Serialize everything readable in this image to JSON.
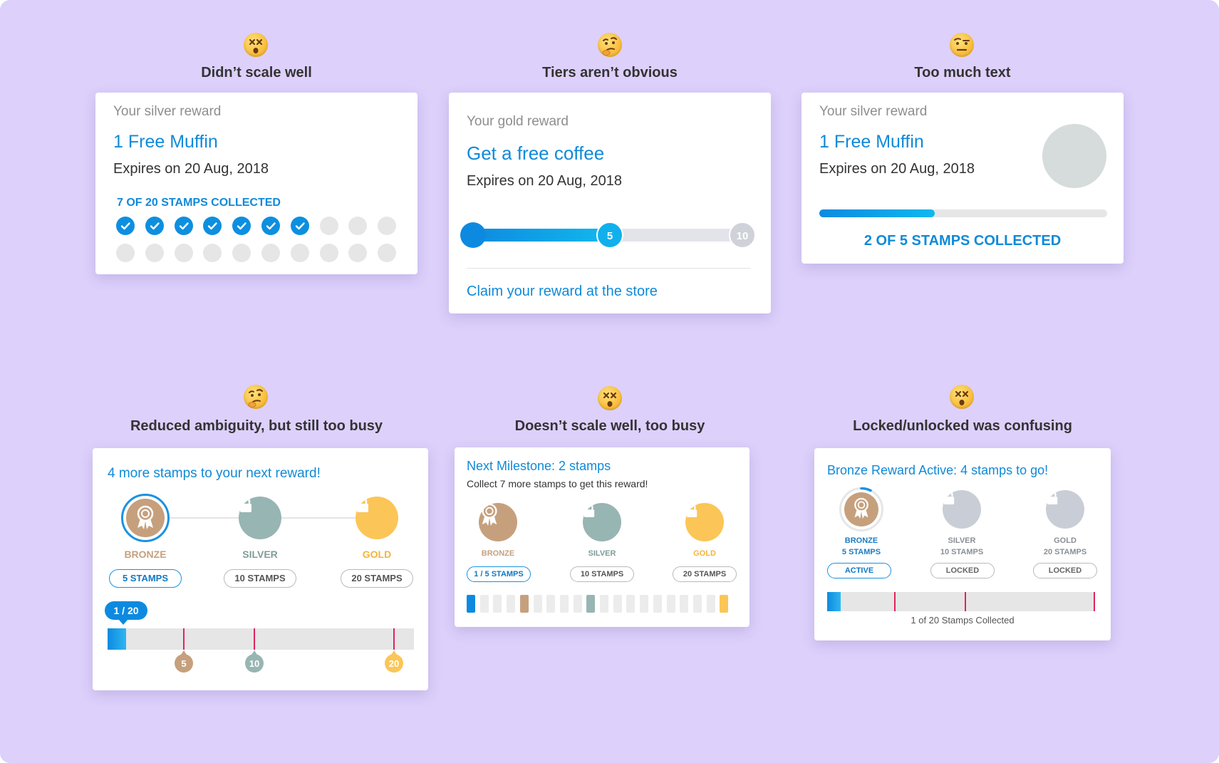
{
  "colors": {
    "background": "#ddd0fb",
    "accent": "#0f8ad8",
    "bronze": "#c6a07d",
    "silver": "#97b5b3",
    "gold": "#fbc657",
    "grey_lock": "#c9ced6",
    "marker": "#e0245e"
  },
  "panels": [
    {
      "emoji": "dizzy-face-icon",
      "caption": "Didn’t scale well",
      "card": {
        "eyebrow": "Your silver reward",
        "title": "1 Free Muffin",
        "expiry": "Expires on 20 Aug, 2018",
        "stamps_label": "7 OF 20 STAMPS COLLECTED",
        "stamps_collected": 7,
        "stamps_total": 20
      }
    },
    {
      "emoji": "thinking-face-icon",
      "caption": "Tiers aren’t obvious",
      "card": {
        "eyebrow": "Your gold reward",
        "title": "Get a free coffee",
        "expiry": "Expires on 20 Aug, 2018",
        "progress_value": 5,
        "progress_max": 10,
        "marker_mid": "5",
        "marker_end": "10",
        "footer": "Claim your reward at the store"
      }
    },
    {
      "emoji": "raised-eyebrow-face-icon",
      "caption": "Too much text",
      "card": {
        "eyebrow": "Your silver reward",
        "title": "1 Free Muffin",
        "expiry": "Expires on 20 Aug, 2018",
        "progress_fraction": 0.4,
        "stamps_label": "2 OF 5 STAMPS COLLECTED"
      }
    },
    {
      "emoji": "thinking-face-icon",
      "caption": "Reduced ambiguity, but still too busy",
      "card": {
        "headline": "4 more stamps to your next reward!",
        "tiers": [
          {
            "name": "BRONZE",
            "pill": "5 STAMPS"
          },
          {
            "name": "SILVER",
            "pill": "10 STAMPS"
          },
          {
            "name": "GOLD",
            "pill": "20 STAMPS"
          }
        ],
        "progress_badge": "1 / 20",
        "progress_value": 1,
        "progress_max": 20,
        "markers": [
          "5",
          "10",
          "20"
        ]
      }
    },
    {
      "emoji": "dizzy-face-icon",
      "caption": "Doesn’t scale well, too busy",
      "card": {
        "headline": "Next Milestone: 2 stamps",
        "subline": "Collect 7 more stamps to get this reward!",
        "tiers": [
          {
            "name": "BRONZE",
            "pill": "1 / 5 STAMPS"
          },
          {
            "name": "SILVER",
            "pill": "10 STAMPS"
          },
          {
            "name": "GOLD",
            "pill": "20 STAMPS"
          }
        ],
        "segments": 20
      }
    },
    {
      "emoji": "dizzy-face-icon",
      "caption": "Locked/unlocked was confusing",
      "card": {
        "headline": "Bronze Reward Active: 4 stamps to go!",
        "tiers": [
          {
            "name": "BRONZE",
            "stamps": "5 STAMPS",
            "pill": "ACTIVE"
          },
          {
            "name": "SILVER",
            "stamps": "10 STAMPS",
            "pill": "LOCKED"
          },
          {
            "name": "GOLD",
            "stamps": "20 STAMPS",
            "pill": "LOCKED"
          }
        ],
        "progress_value": 1,
        "progress_max": 20,
        "footer": "1 of 20 Stamps Collected"
      }
    }
  ]
}
